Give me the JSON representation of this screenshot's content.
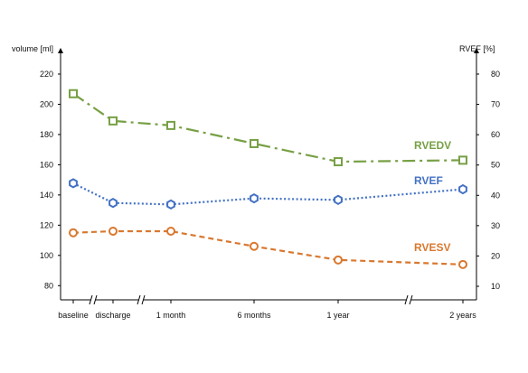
{
  "chart_data": {
    "type": "line",
    "categories": [
      "baseline",
      "discharge",
      "1 month",
      "6 months",
      "1 year",
      "2 years"
    ],
    "ylabel_left": "volume [ml]",
    "ylabel_right": "RVEF [%]",
    "ylim_left": [
      70,
      230
    ],
    "yticks_left": [
      80,
      100,
      120,
      140,
      160,
      180,
      200,
      220
    ],
    "ylim_right": [
      10,
      80
    ],
    "yticks_right": [
      10,
      20,
      30,
      40,
      50,
      60,
      70,
      80
    ],
    "series": [
      {
        "name": "RVEDV",
        "axis": "left",
        "values": [
          207,
          189,
          186,
          174,
          162,
          163
        ],
        "color": "#77a045",
        "marker": "square",
        "dash": "dashdot"
      },
      {
        "name": "RVEF",
        "axis": "right",
        "values": [
          44,
          37.5,
          37,
          39,
          38.5,
          42
        ],
        "color": "#4472c4",
        "marker": "hexagon",
        "dash": "dotted"
      },
      {
        "name": "RVESV",
        "axis": "left",
        "values": [
          115,
          116,
          116,
          106,
          97,
          94
        ],
        "color": "#d9782f",
        "marker": "circle",
        "dash": "dashed"
      }
    ]
  }
}
